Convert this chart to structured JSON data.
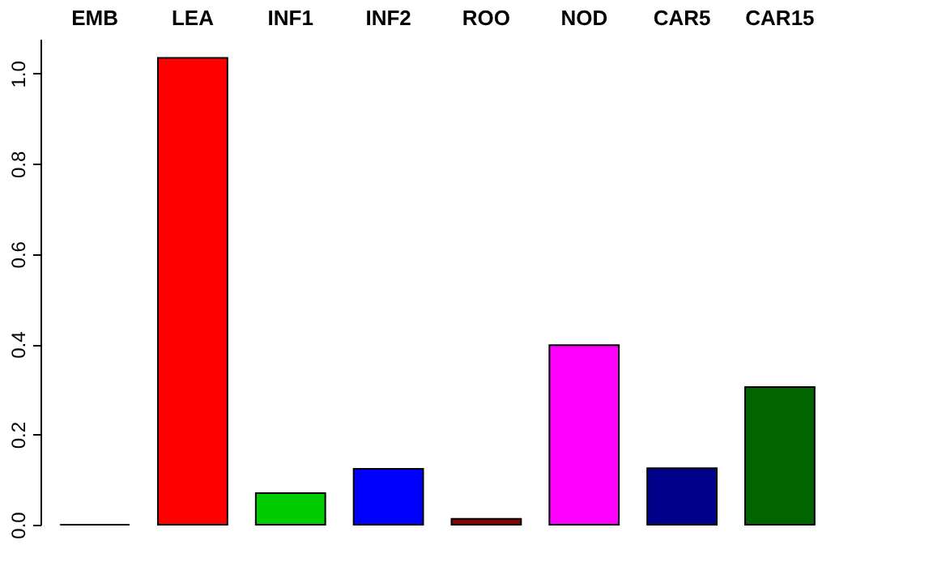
{
  "chart_data": {
    "type": "bar",
    "categories": [
      "EMB",
      "LEA",
      "INF1",
      "INF2",
      "ROO",
      "NOD",
      "CAR5",
      "CAR15"
    ],
    "values": [
      0.0,
      1.035,
      0.07,
      0.124,
      0.013,
      0.398,
      0.125,
      0.305
    ],
    "colors": [
      "#000000",
      "#ff0000",
      "#00cd00",
      "#0000ff",
      "#8b0000",
      "#ff00ff",
      "#00008b",
      "#006400"
    ],
    "ylim": [
      0,
      1.077
    ],
    "yticks": [
      {
        "value": 0,
        "label": "0.0"
      },
      0.2,
      0.4,
      0.6,
      0.8,
      {
        "value": 1,
        "label": "1.0"
      }
    ],
    "grid": false
  }
}
